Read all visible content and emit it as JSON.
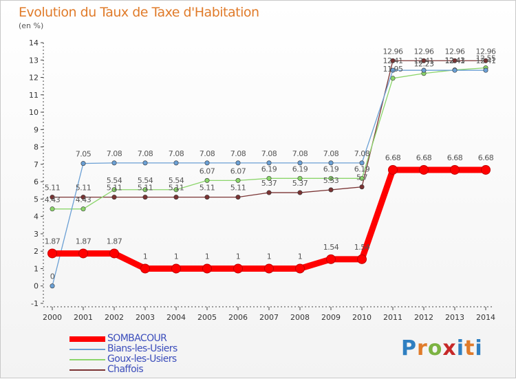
{
  "header": {
    "title": "Evolution du Taux de Taxe d'Habitation",
    "subtitle": "(en %)"
  },
  "logo": {
    "text": "Proxiti"
  },
  "chart_data": {
    "type": "line",
    "title": "Evolution du Taux de Taxe d'Habitation",
    "ylabel": "(en %)",
    "categories": [
      "2000",
      "2001",
      "2002",
      "2003",
      "2004",
      "2005",
      "2006",
      "2007",
      "2008",
      "2009",
      "2010",
      "2011",
      "2012",
      "2013",
      "2014"
    ],
    "ylim": [
      -1,
      14
    ],
    "yticks": [
      -1,
      0,
      1,
      2,
      3,
      4,
      5,
      6,
      7,
      8,
      9,
      10,
      11,
      12,
      13,
      14
    ],
    "grid": false,
    "legend_position": "bottom-left",
    "series": [
      {
        "name": "SOMBACOUR",
        "color": "#ff0000",
        "values": [
          1.87,
          1.87,
          1.87,
          1,
          1,
          1,
          1,
          1,
          1,
          1.54,
          1.54,
          6.68,
          6.68,
          6.68,
          6.68
        ],
        "labels": [
          "1.87",
          "1.87",
          "1.87",
          "1",
          "1",
          "1",
          "1",
          "1",
          "1",
          "1.54",
          "1.54",
          "6.68",
          "6.68",
          "6.68",
          "6.68"
        ]
      },
      {
        "name": "Bians-les-Usiers",
        "color": "#6a9fd4",
        "values": [
          0,
          7.05,
          7.08,
          7.08,
          7.08,
          7.08,
          7.08,
          7.08,
          7.08,
          7.08,
          7.08,
          12.41,
          12.41,
          12.41,
          12.41
        ],
        "labels": [
          "0",
          "7.05",
          "7.08",
          "7.08",
          "7.08",
          "7.08",
          "7.08",
          "7.08",
          "7.08",
          "7.08",
          "7.08",
          "12.41",
          "12.41",
          "12.41",
          "12.41"
        ]
      },
      {
        "name": "Goux-les-Usiers",
        "color": "#8bd56a",
        "values": [
          4.43,
          4.43,
          5.54,
          5.54,
          5.54,
          6.07,
          6.07,
          6.19,
          6.19,
          6.19,
          6.19,
          11.95,
          12.23,
          12.43,
          12.55
        ],
        "labels": [
          "4.43",
          "4.43",
          "5.54",
          "5.54",
          "5.54",
          "6.07",
          "6.07",
          "6.19",
          "6.19",
          "6.19",
          "6.19",
          "11.95",
          "12.23",
          "12.43",
          "12.55"
        ]
      },
      {
        "name": "Chaffois",
        "color": "#7a3333",
        "values": [
          5.11,
          5.11,
          5.11,
          5.11,
          5.11,
          5.11,
          5.11,
          5.37,
          5.37,
          5.53,
          5.7,
          12.96,
          12.96,
          12.96,
          12.96
        ],
        "labels": [
          "5.11",
          "5.11",
          "5.11",
          "5.11",
          "5.11",
          "5.11",
          "5.11",
          "5.37",
          "5.37",
          "5.53",
          "5.7",
          "12.96",
          "12.96",
          "12.96",
          "12.96"
        ]
      }
    ]
  }
}
